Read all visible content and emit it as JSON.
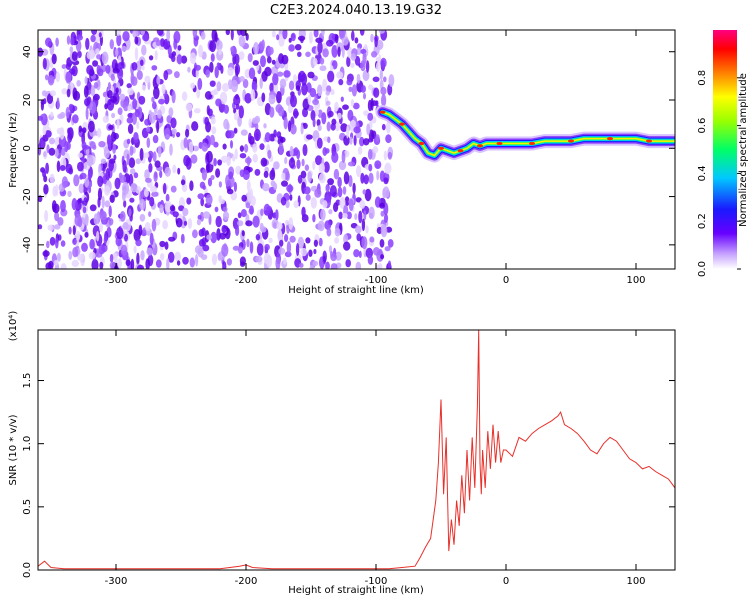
{
  "title": "C2E3.2024.040.13.19.G32",
  "chart_data": [
    {
      "type": "heatmap",
      "xlabel": "Height of straight line (km)",
      "ylabel": "Frequency (Hz)",
      "xlim": [
        -360,
        130
      ],
      "ylim": [
        -50,
        49
      ],
      "xticks": [
        -300,
        -200,
        -100,
        0,
        100
      ],
      "yticks": [
        -40,
        -20,
        0,
        20,
        40
      ],
      "noise_region_x": [
        -360,
        -85
      ],
      "ridge": {
        "x": [
          -95,
          -90,
          -85,
          -80,
          -75,
          -70,
          -65,
          -60,
          -55,
          -50,
          -45,
          -40,
          -35,
          -30,
          -25,
          -20,
          -15,
          -10,
          -5,
          0,
          10,
          20,
          30,
          40,
          50,
          60,
          70,
          80,
          90,
          100,
          110,
          120,
          130
        ],
        "y": [
          15,
          14,
          12,
          10,
          7,
          4,
          2,
          -2,
          -3,
          0,
          -1,
          -2,
          -1,
          0,
          2,
          1,
          2,
          2,
          2,
          2,
          2,
          2,
          3,
          3,
          3,
          4,
          4,
          4,
          4,
          4,
          3,
          3,
          3
        ]
      },
      "colorbar": {
        "label": "Normalized spectral amplitude",
        "ticks": [
          0.0,
          0.2,
          0.4,
          0.6,
          0.8
        ],
        "range": [
          0,
          1
        ]
      }
    },
    {
      "type": "line",
      "xlabel": "Height of straight line (km)",
      "ylabel": "SNR (10 * v/v)",
      "scale_label": "(x10⁴)",
      "xlim": [
        -360,
        130
      ],
      "ylim": [
        0,
        1.9
      ],
      "xticks": [
        -300,
        -200,
        -100,
        0,
        100
      ],
      "yticks": [
        0.0,
        0.5,
        1.0,
        1.5
      ],
      "color": "#e8302a",
      "series": [
        {
          "x": [
            -360,
            -355,
            -350,
            -340,
            -320,
            -300,
            -280,
            -260,
            -240,
            -220,
            -205,
            -200,
            -195,
            -180,
            -160,
            -140,
            -120,
            -100,
            -90,
            -80,
            -70,
            -66,
            -62,
            -58,
            -54,
            -52,
            -50,
            -48,
            -46,
            -44,
            -42,
            -40,
            -38,
            -36,
            -34,
            -32,
            -30,
            -28,
            -26,
            -24,
            -22,
            -21,
            -20,
            -19,
            -18,
            -16,
            -14,
            -12,
            -10,
            -8,
            -6,
            -4,
            -2,
            0,
            5,
            10,
            15,
            20,
            25,
            30,
            35,
            40,
            42,
            45,
            50,
            55,
            60,
            65,
            70,
            75,
            80,
            85,
            90,
            95,
            100,
            105,
            110,
            115,
            120,
            125,
            130
          ],
          "y": [
            0.03,
            0.07,
            0.02,
            0.01,
            0.01,
            0.01,
            0.01,
            0.01,
            0.01,
            0.01,
            0.03,
            0.04,
            0.02,
            0.01,
            0.01,
            0.01,
            0.01,
            0.01,
            0.01,
            0.02,
            0.03,
            0.1,
            0.18,
            0.25,
            0.55,
            0.85,
            1.35,
            0.6,
            1.05,
            0.15,
            0.4,
            0.2,
            0.55,
            0.35,
            0.75,
            0.45,
            0.95,
            0.55,
            1.05,
            0.65,
            1.3,
            1.9,
            0.85,
            0.6,
            0.95,
            0.65,
            1.1,
            0.8,
            1.15,
            0.85,
            1.1,
            0.85,
            0.95,
            0.95,
            0.9,
            1.05,
            1.02,
            1.08,
            1.12,
            1.15,
            1.18,
            1.22,
            1.25,
            1.15,
            1.12,
            1.08,
            1.02,
            0.95,
            0.92,
            1.0,
            1.05,
            1.02,
            0.95,
            0.88,
            0.85,
            0.8,
            0.82,
            0.78,
            0.75,
            0.72,
            0.65
          ]
        }
      ]
    }
  ]
}
